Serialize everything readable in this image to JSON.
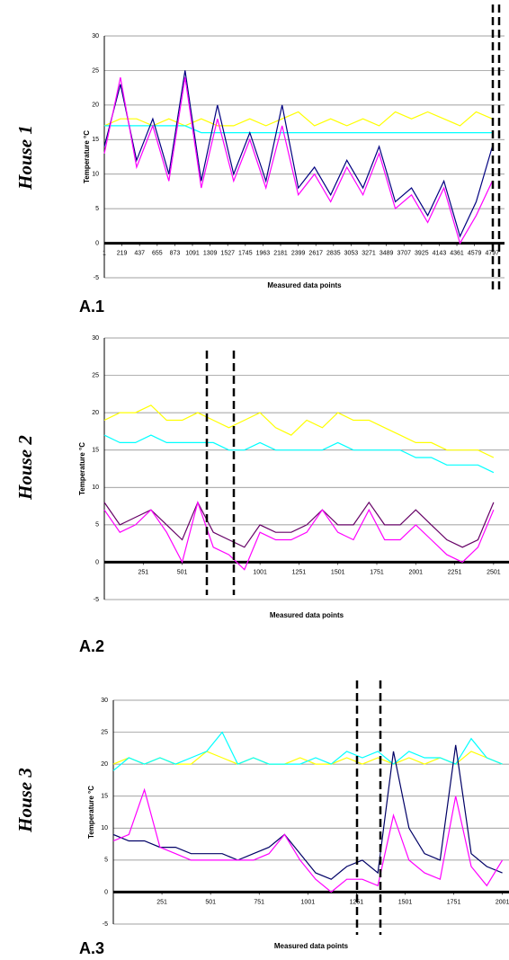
{
  "chart_data": [
    {
      "type": "line",
      "title": "House 1",
      "label": "A.1",
      "ylabel": "Temperature °C",
      "xlabel": "Measured data points",
      "x": [
        1,
        200,
        400,
        600,
        800,
        1000,
        1200,
        1400,
        1600,
        1800,
        2000,
        2200,
        2400,
        2600,
        2800,
        3000,
        3200,
        3400,
        3600,
        3800,
        4000,
        4200,
        4400,
        4600,
        4800
      ],
      "series": [
        {
          "color": "#ffff00",
          "values": [
            17,
            18,
            18,
            17,
            18,
            17,
            18,
            17,
            17,
            18,
            17,
            18,
            19,
            17,
            18,
            17,
            18,
            17,
            19,
            18,
            19,
            18,
            17,
            19,
            18
          ]
        },
        {
          "color": "#00ffff",
          "values": [
            17,
            17,
            17,
            17,
            17,
            17,
            16,
            16,
            16,
            16,
            16,
            16,
            16,
            16,
            16,
            16,
            16,
            16,
            16,
            16,
            16,
            16,
            16,
            16,
            16
          ]
        },
        {
          "color": "#000080",
          "values": [
            14,
            23,
            12,
            18,
            10,
            25,
            9,
            20,
            10,
            16,
            9,
            20,
            8,
            11,
            7,
            12,
            8,
            14,
            6,
            8,
            4,
            9,
            1,
            6,
            14
          ]
        },
        {
          "color": "#ff00ff",
          "values": [
            13,
            24,
            11,
            17,
            9,
            24,
            8,
            18,
            9,
            15,
            8,
            17,
            7,
            10,
            6,
            11,
            7,
            13,
            5,
            7,
            3,
            8,
            0,
            4,
            9
          ]
        }
      ],
      "xlim": [
        1,
        4950
      ],
      "xticks": [
        1,
        219,
        437,
        655,
        873,
        1091,
        1309,
        1527,
        1745,
        1963,
        2181,
        2399,
        2617,
        2835,
        3053,
        3271,
        3489,
        3707,
        3925,
        4143,
        4361,
        4579,
        4797
      ],
      "ylim": [
        -5,
        30
      ],
      "yticks": [
        -5,
        0,
        5,
        10,
        15,
        20,
        25,
        30
      ],
      "grid": true
    },
    {
      "type": "line",
      "title": "House 2",
      "label": "A.2",
      "ylabel": "Temperature °C",
      "xlabel": "Measured data points",
      "x": [
        1,
        101,
        201,
        301,
        401,
        501,
        601,
        701,
        801,
        901,
        1001,
        1101,
        1201,
        1301,
        1401,
        1501,
        1601,
        1701,
        1801,
        1901,
        2001,
        2101,
        2201,
        2301,
        2401,
        2501
      ],
      "series": [
        {
          "color": "#ffff00",
          "values": [
            19,
            20,
            20,
            21,
            19,
            19,
            20,
            19,
            18,
            19,
            20,
            18,
            17,
            19,
            18,
            20,
            19,
            19,
            18,
            17,
            16,
            16,
            15,
            15,
            15,
            14
          ]
        },
        {
          "color": "#00ffff",
          "values": [
            17,
            16,
            16,
            17,
            16,
            16,
            16,
            16,
            15,
            15,
            16,
            15,
            15,
            15,
            15,
            16,
            15,
            15,
            15,
            15,
            14,
            14,
            13,
            13,
            13,
            12
          ]
        },
        {
          "color": "#660066",
          "values": [
            8,
            5,
            6,
            7,
            5,
            3,
            8,
            4,
            3,
            2,
            5,
            4,
            4,
            5,
            7,
            5,
            5,
            8,
            5,
            5,
            7,
            5,
            3,
            2,
            3,
            8
          ]
        },
        {
          "color": "#ff00ff",
          "values": [
            7,
            4,
            5,
            7,
            4,
            0,
            8,
            2,
            1,
            -1,
            4,
            3,
            3,
            4,
            7,
            4,
            3,
            7,
            3,
            3,
            5,
            3,
            1,
            0,
            2,
            7
          ]
        }
      ],
      "xlim": [
        1,
        2600
      ],
      "xticks": [
        251,
        501,
        1001,
        1251,
        1501,
        1751,
        2001,
        2251,
        2501
      ],
      "ylim": [
        -5,
        30
      ],
      "yticks": [
        -5,
        0,
        5,
        10,
        15,
        20,
        25,
        30
      ],
      "grid": true
    },
    {
      "type": "line",
      "title": "House 3",
      "label": "A.3",
      "ylabel": "Temperature °C",
      "xlabel": "Measured data points",
      "x": [
        1,
        81,
        161,
        241,
        321,
        401,
        481,
        561,
        641,
        721,
        801,
        881,
        961,
        1041,
        1121,
        1201,
        1281,
        1361,
        1441,
        1521,
        1601,
        1681,
        1761,
        1841,
        1921,
        2001
      ],
      "series": [
        {
          "color": "#ffff00",
          "values": [
            20,
            21,
            20,
            21,
            20,
            20,
            22,
            21,
            20,
            21,
            20,
            20,
            21,
            20,
            20,
            21,
            20,
            21,
            20,
            21,
            20,
            21,
            20,
            22,
            21,
            20
          ]
        },
        {
          "color": "#00ffff",
          "values": [
            19,
            21,
            20,
            21,
            20,
            21,
            22,
            25,
            20,
            21,
            20,
            20,
            20,
            21,
            20,
            22,
            21,
            22,
            20,
            22,
            21,
            21,
            20,
            24,
            21,
            20
          ]
        },
        {
          "color": "#000066",
          "values": [
            9,
            8,
            8,
            7,
            7,
            6,
            6,
            6,
            5,
            6,
            7,
            9,
            6,
            3,
            2,
            4,
            5,
            3,
            22,
            10,
            6,
            5,
            23,
            6,
            4,
            3
          ]
        },
        {
          "color": "#ff00ff",
          "values": [
            8,
            9,
            16,
            7,
            6,
            5,
            5,
            5,
            5,
            5,
            6,
            9,
            5,
            2,
            0,
            2,
            2,
            1,
            12,
            5,
            3,
            2,
            15,
            4,
            1,
            5
          ]
        }
      ],
      "xlim": [
        1,
        2035
      ],
      "xticks": [
        251,
        501,
        751,
        1001,
        1251,
        1501,
        1751,
        2001
      ],
      "ylim": [
        -5,
        30
      ],
      "yticks": [
        -5,
        0,
        5,
        10,
        15,
        20,
        25,
        30
      ],
      "grid": true
    }
  ]
}
